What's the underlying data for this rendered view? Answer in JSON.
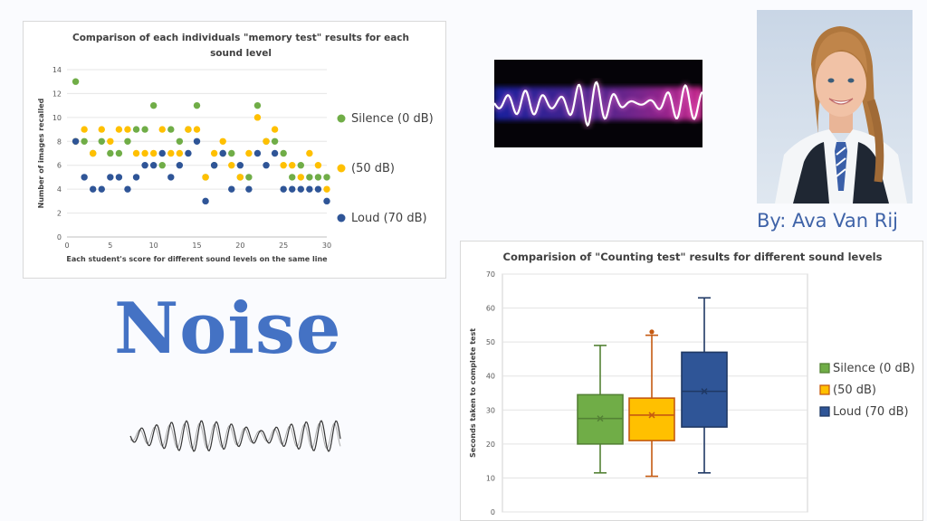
{
  "title": "Noise",
  "byline": "By: Ava Van Rij",
  "colors": {
    "silence": "#70ad47",
    "medium": "#ffc000",
    "loud": "#2f5597",
    "brand": "#4472c4"
  },
  "photo": {
    "icon": "portrait-photo"
  },
  "chart_data": [
    {
      "type": "scatter",
      "title": "Comparison of each individuals \"memory test\" results for each sound level",
      "xlabel": "Each student's score for different sound levels on the same line",
      "ylabel": "Number of images recalled",
      "xlim": [
        0,
        30
      ],
      "ylim": [
        0,
        14
      ],
      "xticks": [
        0,
        5,
        10,
        15,
        20,
        25,
        30
      ],
      "yticks": [
        0,
        2,
        4,
        6,
        8,
        10,
        12,
        14
      ],
      "legend_position": "right",
      "series": [
        {
          "name": "Silence (0 dB)",
          "color": "#70ad47",
          "x": [
            1,
            2,
            3,
            4,
            5,
            6,
            7,
            8,
            9,
            10,
            11,
            12,
            13,
            14,
            15,
            16,
            17,
            18,
            19,
            20,
            21,
            22,
            23,
            24,
            25,
            26,
            27,
            28,
            29,
            30
          ],
          "y": [
            13,
            8,
            7,
            8,
            7,
            7,
            8,
            9,
            9,
            11,
            6,
            9,
            8,
            9,
            11,
            5,
            6,
            7,
            7,
            5,
            5,
            11,
            8,
            8,
            7,
            5,
            6,
            5,
            5,
            5
          ]
        },
        {
          "name": "(50 dB)",
          "color": "#ffc000",
          "x": [
            1,
            2,
            3,
            4,
            5,
            6,
            7,
            8,
            9,
            10,
            11,
            12,
            13,
            14,
            15,
            16,
            17,
            18,
            19,
            20,
            21,
            22,
            23,
            24,
            25,
            26,
            27,
            28,
            29,
            30
          ],
          "y": [
            8,
            9,
            7,
            9,
            8,
            9,
            9,
            7,
            7,
            7,
            9,
            7,
            7,
            9,
            9,
            5,
            7,
            8,
            6,
            5,
            7,
            10,
            8,
            9,
            6,
            6,
            5,
            7,
            6,
            4
          ]
        },
        {
          "name": "Loud (70 dB)",
          "color": "#2f5597",
          "x": [
            1,
            2,
            3,
            4,
            5,
            6,
            7,
            8,
            9,
            10,
            11,
            12,
            13,
            14,
            15,
            16,
            17,
            18,
            19,
            20,
            21,
            22,
            23,
            24,
            25,
            26,
            27,
            28,
            29,
            30
          ],
          "y": [
            8,
            5,
            4,
            4,
            5,
            5,
            4,
            5,
            6,
            6,
            7,
            5,
            6,
            7,
            8,
            3,
            6,
            7,
            4,
            6,
            4,
            7,
            6,
            7,
            4,
            4,
            4,
            4,
            4,
            3
          ]
        }
      ]
    },
    {
      "type": "box",
      "title": "Comparision of \"Counting test\" results for different sound levels",
      "xlabel": "",
      "ylabel": "Seconds taken to complete test",
      "ylim": [
        0,
        70
      ],
      "yticks": [
        0,
        10,
        20,
        30,
        40,
        50,
        60,
        70
      ],
      "legend_position": "right",
      "series": [
        {
          "name": "Silence (0 dB)",
          "color": "#70ad47",
          "border": "#548235",
          "min": 11.5,
          "q1": 20,
          "median": 27.5,
          "mean": 27.5,
          "q3": 34.5,
          "max": 49
        },
        {
          "name": "(50 dB)",
          "color": "#ffc000",
          "border": "#c55a11",
          "min": 10.5,
          "q1": 21,
          "median": 28.5,
          "mean": 28.5,
          "q3": 33.5,
          "max": 52,
          "outliers": [
            53
          ]
        },
        {
          "name": "Loud (70 dB)",
          "color": "#2f5597",
          "border": "#1f3864",
          "min": 11.5,
          "q1": 25,
          "median": 35.5,
          "mean": 35.5,
          "q3": 47,
          "max": 63
        }
      ]
    }
  ]
}
